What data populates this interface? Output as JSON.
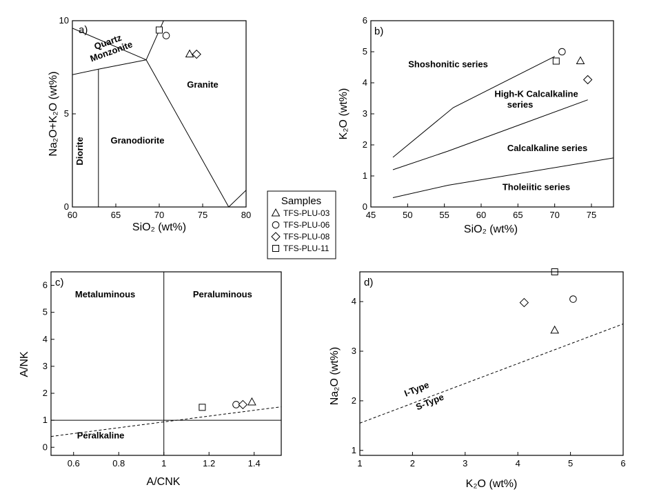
{
  "legend": {
    "title": "Samples",
    "items": [
      {
        "name": "TFS-PLU-03",
        "marker": "triangle"
      },
      {
        "name": "TFS-PLU-06",
        "marker": "circle"
      },
      {
        "name": "TFS-PLU-08",
        "marker": "diamond"
      },
      {
        "name": "TFS-PLU-11",
        "marker": "square"
      }
    ]
  },
  "chart_data": [
    {
      "type": "scatter",
      "panel_label": "a)",
      "xlabel": "SiO₂ (wt%)",
      "ylabel": "Na₂O+K₂O (wt%)",
      "xlim": [
        60,
        80
      ],
      "ylim": [
        0,
        10
      ],
      "xticks": [
        "60",
        "65",
        "70",
        "75",
        "80"
      ],
      "yticks": [
        "0",
        "5",
        "10"
      ],
      "boundaries": [
        [
          [
            60,
            7.1
          ],
          [
            63,
            7.4
          ]
        ],
        [
          [
            63,
            0
          ],
          [
            63,
            7.4
          ]
        ],
        [
          [
            63,
            7.4
          ],
          [
            68.5,
            7.9
          ]
        ],
        [
          [
            68.5,
            7.9
          ],
          [
            78,
            0
          ]
        ],
        [
          [
            60,
            9.6
          ],
          [
            68.5,
            7.9
          ]
        ],
        [
          [
            68.5,
            7.9
          ],
          [
            70.5,
            10
          ]
        ],
        [
          [
            78,
            0
          ],
          [
            80,
            0.9
          ]
        ]
      ],
      "fields": [
        {
          "label": "Quartz",
          "x": 64.2,
          "y": 8.7,
          "rot": -20
        },
        {
          "label": "Monzonite",
          "x": 64.6,
          "y": 8.2,
          "rot": -20
        },
        {
          "label": "Granite",
          "x": 75,
          "y": 6.4,
          "rot": 0
        },
        {
          "label": "Granodiorite",
          "x": 67.5,
          "y": 3.4,
          "rot": 0
        },
        {
          "label": "Diorite",
          "x": 61.2,
          "y": 3.0,
          "rot": -90
        }
      ],
      "series": [
        {
          "name": "TFS-PLU-03",
          "points": [
            [
              73.5,
              8.2
            ]
          ]
        },
        {
          "name": "TFS-PLU-06",
          "points": [
            [
              70.8,
              9.2
            ]
          ]
        },
        {
          "name": "TFS-PLU-08",
          "points": [
            [
              74.3,
              8.2
            ]
          ]
        },
        {
          "name": "TFS-PLU-11",
          "points": [
            [
              70,
              9.5
            ]
          ]
        }
      ]
    },
    {
      "type": "scatter",
      "panel_label": "b)",
      "xlabel": "SiO₂ (wt%)",
      "ylabel": "K₂O (wt%)",
      "xlim": [
        45,
        78
      ],
      "ylim": [
        0,
        6
      ],
      "xticks": [
        "45",
        "50",
        "55",
        "60",
        "65",
        "70",
        "75"
      ],
      "yticks": [
        "0",
        "1",
        "2",
        "3",
        "4",
        "5",
        "6"
      ],
      "boundaries": [
        [
          [
            48,
            1.6
          ],
          [
            56.2,
            3.2
          ],
          [
            70,
            4.85
          ]
        ],
        [
          [
            48,
            1.2
          ],
          [
            55.5,
            1.8
          ],
          [
            74.5,
            3.45
          ]
        ],
        [
          [
            48,
            0.3
          ],
          [
            55.5,
            0.7
          ],
          [
            78,
            1.58
          ]
        ]
      ],
      "fields": [
        {
          "label": "Shoshonitic series",
          "x": 55.5,
          "y": 4.5,
          "rot": 0
        },
        {
          "label": "High-K Calcalkaline",
          "x": 67.5,
          "y": 3.55,
          "rot": 0
        },
        {
          "label": "series",
          "x": 65.3,
          "y": 3.2,
          "rot": 0
        },
        {
          "label": "Calcalkaline series",
          "x": 69,
          "y": 1.8,
          "rot": 0
        },
        {
          "label": "Tholeiitic series",
          "x": 67.5,
          "y": 0.55,
          "rot": 0
        }
      ],
      "series": [
        {
          "name": "TFS-PLU-03",
          "points": [
            [
              73.5,
              4.7
            ]
          ]
        },
        {
          "name": "TFS-PLU-06",
          "points": [
            [
              71,
              5.0
            ]
          ]
        },
        {
          "name": "TFS-PLU-08",
          "points": [
            [
              74.5,
              4.1
            ]
          ]
        },
        {
          "name": "TFS-PLU-11",
          "points": [
            [
              70.2,
              4.7
            ]
          ]
        }
      ]
    },
    {
      "type": "scatter",
      "panel_label": "c)",
      "xlabel": "A/CNK",
      "ylabel": "A/NK",
      "xlim": [
        0.5,
        1.52
      ],
      "ylim": [
        -0.3,
        6.5
      ],
      "xticks": [
        "0.6",
        "0.8",
        "1",
        "1.2",
        "1.4"
      ],
      "yticks": [
        "0",
        "1",
        "2",
        "3",
        "4",
        "5",
        "6"
      ],
      "boundaries": [
        {
          "style": "solid",
          "pts": [
            [
              1.0,
              -0.3
            ],
            [
              1.0,
              6.5
            ]
          ]
        },
        {
          "style": "solid-thick",
          "pts": [
            [
              0.5,
              1.0
            ],
            [
              1.52,
              1.0
            ]
          ]
        },
        {
          "style": "dashed",
          "pts": [
            [
              0.5,
              0.4
            ],
            [
              1.52,
              1.5
            ]
          ]
        }
      ],
      "fields": [
        {
          "label": "Metaluminous",
          "x": 0.74,
          "y": 5.55,
          "rot": 0
        },
        {
          "label": "Peraluminous",
          "x": 1.26,
          "y": 5.55,
          "rot": 0
        },
        {
          "label": "Peralkaline",
          "x": 0.72,
          "y": 0.32,
          "rot": 0
        }
      ],
      "series": [
        {
          "name": "TFS-PLU-03",
          "points": [
            [
              1.39,
              1.67
            ]
          ]
        },
        {
          "name": "TFS-PLU-06",
          "points": [
            [
              1.32,
              1.58
            ]
          ]
        },
        {
          "name": "TFS-PLU-08",
          "points": [
            [
              1.35,
              1.58
            ]
          ]
        },
        {
          "name": "TFS-PLU-11",
          "points": [
            [
              1.17,
              1.48
            ]
          ]
        }
      ]
    },
    {
      "type": "scatter",
      "panel_label": "d)",
      "xlabel": "K₂O (wt%)",
      "ylabel": "Na₂O (wt%)",
      "xlim": [
        1,
        6
      ],
      "ylim": [
        0.9,
        4.6
      ],
      "xticks": [
        "1",
        "2",
        "3",
        "4",
        "5",
        "6"
      ],
      "yticks": [
        "1",
        "2",
        "3",
        "4"
      ],
      "boundaries": [
        {
          "style": "dashed",
          "pts": [
            [
              1,
              1.55
            ],
            [
              6,
              3.55
            ]
          ]
        }
      ],
      "fields": [
        {
          "label": "I-Type",
          "x": 2.1,
          "y": 2.18,
          "rot": -22
        },
        {
          "label": "S-Type",
          "x": 2.35,
          "y": 1.92,
          "rot": -22
        }
      ],
      "series": [
        {
          "name": "TFS-PLU-03",
          "points": [
            [
              4.7,
              3.42
            ]
          ]
        },
        {
          "name": "TFS-PLU-06",
          "points": [
            [
              5.05,
              4.05
            ]
          ]
        },
        {
          "name": "TFS-PLU-08",
          "points": [
            [
              4.12,
              3.98
            ]
          ]
        },
        {
          "name": "TFS-PLU-11",
          "points": [
            [
              4.7,
              4.6
            ]
          ]
        }
      ]
    }
  ]
}
